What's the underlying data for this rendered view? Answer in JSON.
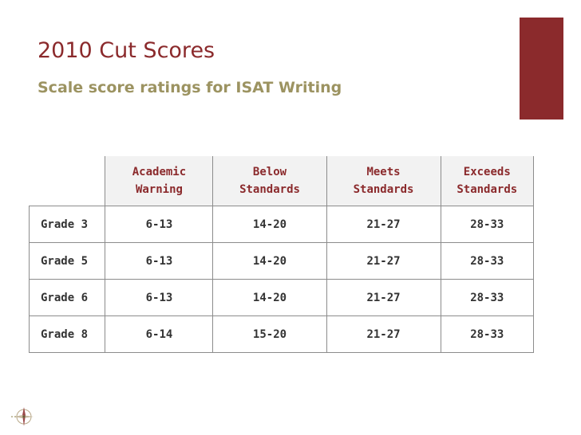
{
  "title": "2010 Cut Scores",
  "subtitle": "Scale score ratings for ISAT Writing",
  "table": {
    "headers": [
      {
        "line1": "Academic",
        "line2": "Warning"
      },
      {
        "line1": "Below",
        "line2": "Standards"
      },
      {
        "line1": "Meets",
        "line2": "Standards"
      },
      {
        "line1": "Exceeds",
        "line2": "Standards"
      }
    ],
    "rows": [
      {
        "grade": "Grade 3",
        "cells": [
          "6-13",
          "14-20",
          "21-27",
          "28-33"
        ]
      },
      {
        "grade": "Grade 5",
        "cells": [
          "6-13",
          "14-20",
          "21-27",
          "28-33"
        ]
      },
      {
        "grade": "Grade 6",
        "cells": [
          "6-13",
          "14-20",
          "21-27",
          "28-33"
        ]
      },
      {
        "grade": "Grade 8",
        "cells": [
          "6-14",
          "15-20",
          "21-27",
          "28-33"
        ]
      }
    ]
  },
  "colors": {
    "accent": "#8b2a2c",
    "subtitle": "#9c9361",
    "header_bg": "#f2f2f2",
    "border": "#8c8c8c"
  },
  "icons": {
    "logo": "compass-logo-icon"
  }
}
